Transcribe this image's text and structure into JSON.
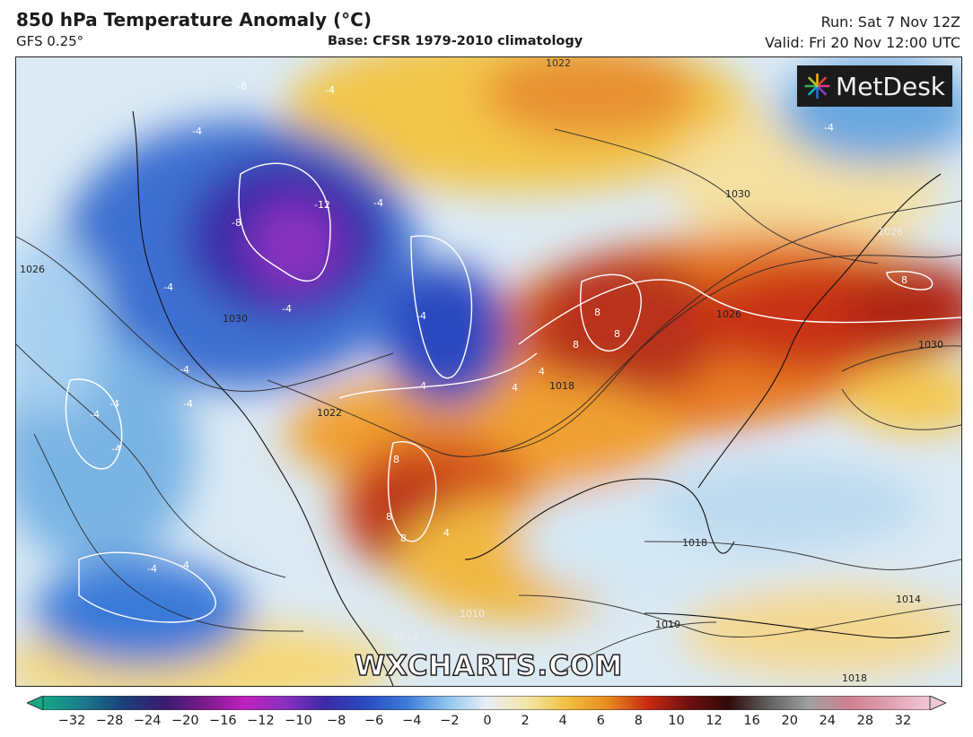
{
  "header": {
    "title": "850 hPa Temperature Anomaly (°C)",
    "model": "GFS 0.25°",
    "base": "Base: CFSR 1979-2010 climatology",
    "run": "Run: Sat 7 Nov 12Z",
    "valid": "Valid: Fri 20 Nov 12:00 UTC"
  },
  "logo": {
    "text": "MetDesk",
    "icon": "metdesk-starburst-icon"
  },
  "watermark": "WXCHARTS.COM",
  "colorbar": {
    "ticks": [
      "−32",
      "−28",
      "−24",
      "−20",
      "−16",
      "−12",
      "−10",
      "−8",
      "−6",
      "−4",
      "−2",
      "0",
      "2",
      "4",
      "6",
      "8",
      "10",
      "12",
      "16",
      "20",
      "24",
      "28",
      "32"
    ],
    "colors": [
      "#15a884",
      "#1b7a8c",
      "#1a3f7a",
      "#3a1a70",
      "#7a1a8a",
      "#c020c0",
      "#8a30c0",
      "#3a2aa8",
      "#2a4ac0",
      "#3a7ad8",
      "#8cc4ec",
      "#e8eef4",
      "#f4e6a8",
      "#f0c040",
      "#e88a20",
      "#c82a10",
      "#701010",
      "#300808",
      "#606060",
      "#a0a0a0",
      "#d08090",
      "#e0a0b0",
      "#f0c8d8"
    ]
  },
  "map_labels": {
    "isobars": [
      "1022",
      "1030",
      "1026",
      "1026",
      "1026",
      "1030",
      "1030",
      "1022",
      "1018",
      "1018",
      "1014",
      "1010",
      "1010",
      "1014",
      "1018"
    ],
    "anomalies": [
      "-8",
      "-4",
      "-4",
      "-8",
      "-12",
      "-4",
      "-4",
      "-4",
      "-4",
      "-4",
      "-4",
      "-4",
      "-4",
      "-4",
      "-4",
      "-4",
      "-4",
      "4",
      "4",
      "8",
      "8",
      "8",
      "8",
      "8",
      "8",
      "4",
      "4",
      "8"
    ]
  }
}
